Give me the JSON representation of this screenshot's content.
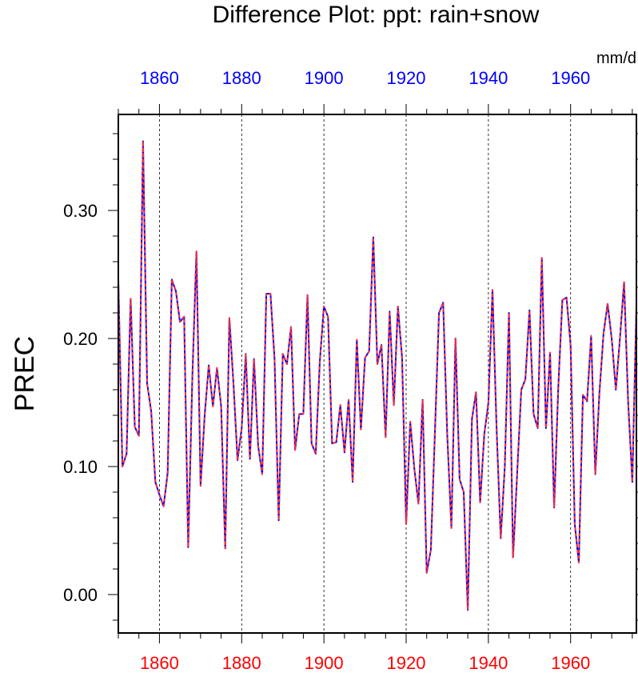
{
  "chart_data": {
    "type": "line",
    "title": "Difference Plot: ppt: rain+snow",
    "units": "mm/d",
    "ylabel": "PREC",
    "xlabel": "",
    "xlim": [
      1850,
      1976
    ],
    "ylim": [
      -0.03,
      0.375
    ],
    "grid": "vertical dashed lines at major x ticks",
    "y_ticks": [
      {
        "value": 0.0,
        "label": "0.00"
      },
      {
        "value": 0.1,
        "label": "0.10"
      },
      {
        "value": 0.2,
        "label": "0.20"
      },
      {
        "value": 0.3,
        "label": "0.30"
      }
    ],
    "x_ticks_top": [
      {
        "value": 1860,
        "label": "1860"
      },
      {
        "value": 1880,
        "label": "1880"
      },
      {
        "value": 1900,
        "label": "1900"
      },
      {
        "value": 1920,
        "label": "1920"
      },
      {
        "value": 1940,
        "label": "1940"
      },
      {
        "value": 1960,
        "label": "1960"
      }
    ],
    "x_ticks_bottom": [
      {
        "value": 1860,
        "label": "1860"
      },
      {
        "value": 1880,
        "label": "1880"
      },
      {
        "value": 1900,
        "label": "1900"
      },
      {
        "value": 1920,
        "label": "1920"
      },
      {
        "value": 1940,
        "label": "1940"
      },
      {
        "value": 1960,
        "label": "1960"
      }
    ],
    "colors": {
      "top_axis": "#0000ff",
      "bottom_axis": "#ff0000",
      "line_solid": "#0000ff",
      "line_dashed": "#ff3030",
      "text": "#000000"
    },
    "series": [
      {
        "name": "PREC",
        "style": "blue solid with red dashes overlaid",
        "x": [
          1850,
          1851,
          1852,
          1853,
          1854,
          1855,
          1856,
          1857,
          1858,
          1859,
          1860,
          1861,
          1862,
          1863,
          1864,
          1865,
          1866,
          1867,
          1868,
          1869,
          1870,
          1871,
          1872,
          1873,
          1874,
          1875,
          1876,
          1877,
          1878,
          1879,
          1880,
          1881,
          1882,
          1883,
          1884,
          1885,
          1886,
          1887,
          1888,
          1889,
          1890,
          1891,
          1892,
          1893,
          1894,
          1895,
          1896,
          1897,
          1898,
          1899,
          1900,
          1901,
          1902,
          1903,
          1904,
          1905,
          1906,
          1907,
          1908,
          1909,
          1910,
          1911,
          1912,
          1913,
          1914,
          1915,
          1916,
          1917,
          1918,
          1919,
          1920,
          1921,
          1922,
          1923,
          1924,
          1925,
          1926,
          1927,
          1928,
          1929,
          1930,
          1931,
          1932,
          1933,
          1934,
          1935,
          1936,
          1937,
          1938,
          1939,
          1940,
          1941,
          1942,
          1943,
          1944,
          1945,
          1946,
          1947,
          1948,
          1949,
          1950,
          1951,
          1952,
          1953,
          1954,
          1955,
          1956,
          1957,
          1958,
          1959,
          1960,
          1961,
          1962,
          1963,
          1964,
          1965,
          1966,
          1967,
          1968,
          1969,
          1970,
          1971,
          1972,
          1973,
          1974,
          1975,
          1976
        ],
        "values": [
          0.246,
          0.1,
          0.11,
          0.231,
          0.131,
          0.124,
          0.354,
          0.165,
          0.143,
          0.088,
          0.078,
          0.069,
          0.095,
          0.246,
          0.237,
          0.213,
          0.217,
          0.037,
          0.17,
          0.268,
          0.085,
          0.14,
          0.179,
          0.147,
          0.177,
          0.147,
          0.036,
          0.216,
          0.165,
          0.105,
          0.13,
          0.188,
          0.106,
          0.184,
          0.116,
          0.094,
          0.235,
          0.235,
          0.184,
          0.058,
          0.188,
          0.18,
          0.209,
          0.113,
          0.141,
          0.141,
          0.234,
          0.118,
          0.11,
          0.182,
          0.225,
          0.217,
          0.118,
          0.119,
          0.148,
          0.111,
          0.152,
          0.088,
          0.199,
          0.129,
          0.185,
          0.19,
          0.279,
          0.18,
          0.195,
          0.123,
          0.221,
          0.148,
          0.225,
          0.185,
          0.055,
          0.135,
          0.098,
          0.071,
          0.152,
          0.017,
          0.035,
          0.127,
          0.22,
          0.228,
          0.125,
          0.052,
          0.2,
          0.09,
          0.08,
          -0.012,
          0.137,
          0.158,
          0.072,
          0.125,
          0.15,
          0.238,
          0.13,
          0.044,
          0.1,
          0.22,
          0.029,
          0.095,
          0.16,
          0.168,
          0.222,
          0.141,
          0.13,
          0.263,
          0.13,
          0.189,
          0.068,
          0.162,
          0.23,
          0.232,
          0.195,
          0.055,
          0.025,
          0.156,
          0.151,
          0.202,
          0.094,
          0.157,
          0.204,
          0.227,
          0.2,
          0.16,
          0.2,
          0.244,
          0.15,
          0.088,
          0.225
        ]
      }
    ]
  }
}
